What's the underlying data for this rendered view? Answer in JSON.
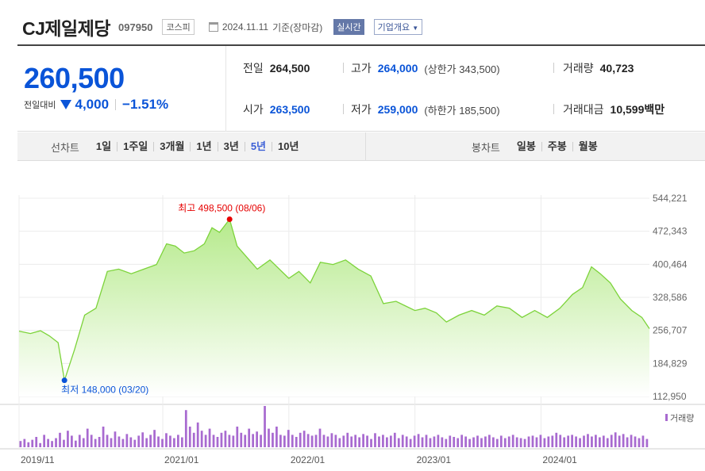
{
  "header": {
    "company": "CJ제일제당",
    "code": "097950",
    "market": "코스피",
    "date": "2024.11.11",
    "basis": "기준(장마감)",
    "realtime_btn": "실시간",
    "overview_btn": "기업개요"
  },
  "price": {
    "current": "260,500",
    "change_label": "전일대비",
    "change_amount": "4,000",
    "change_pct": "−1.51%",
    "direction": "down"
  },
  "stats": {
    "prev_close_label": "전일",
    "prev_close": "264,500",
    "high_label": "고가",
    "high": "264,000",
    "upper_limit": "(상한가 343,500)",
    "volume_label": "거래량",
    "volume": "40,723",
    "open_label": "시가",
    "open": "263,500",
    "low_label": "저가",
    "low": "259,000",
    "lower_limit": "(하한가 185,500)",
    "turnover_label": "거래대금",
    "turnover": "10,599",
    "turnover_unit": "백만"
  },
  "tabs": {
    "line_title": "선차트",
    "line_items": [
      "1일",
      "1주일",
      "3개월",
      "1년",
      "3년",
      "5년",
      "10년"
    ],
    "active_line": "5년",
    "candle_title": "봉차트",
    "candle_items": [
      "일봉",
      "주봉",
      "월봉"
    ]
  },
  "colors": {
    "accent_blue": "#0a54d8",
    "max_red": "#e60000",
    "line_green": "#7cd33a",
    "volume_purple": "#a86ad0"
  },
  "chart_data": {
    "type": "area",
    "period": "5y",
    "x_ticks": [
      "2019/11",
      "2021/01",
      "2022/01",
      "2023/01",
      "2024/01"
    ],
    "y_ticks": [
      "544,221",
      "472,343",
      "400,464",
      "328,586",
      "256,707",
      "184,829",
      "112,950"
    ],
    "ylim": [
      112950,
      544221
    ],
    "series": [
      {
        "values": [
          [
            2019.86,
            255000
          ],
          [
            2019.95,
            250000
          ],
          [
            2020.03,
            256000
          ],
          [
            2020.1,
            245000
          ],
          [
            2020.17,
            230000
          ],
          [
            2020.22,
            148000
          ],
          [
            2020.3,
            215000
          ],
          [
            2020.38,
            290000
          ],
          [
            2020.47,
            305000
          ],
          [
            2020.56,
            385000
          ],
          [
            2020.65,
            390000
          ],
          [
            2020.75,
            380000
          ],
          [
            2020.85,
            390000
          ],
          [
            2020.95,
            400000
          ],
          [
            2021.03,
            445000
          ],
          [
            2021.1,
            440000
          ],
          [
            2021.17,
            425000
          ],
          [
            2021.25,
            430000
          ],
          [
            2021.33,
            445000
          ],
          [
            2021.39,
            480000
          ],
          [
            2021.45,
            470000
          ],
          [
            2021.53,
            498500
          ],
          [
            2021.59,
            440000
          ],
          [
            2021.67,
            415000
          ],
          [
            2021.75,
            390000
          ],
          [
            2021.85,
            410000
          ],
          [
            2022.0,
            370000
          ],
          [
            2022.08,
            385000
          ],
          [
            2022.17,
            360000
          ],
          [
            2022.25,
            405000
          ],
          [
            2022.35,
            400000
          ],
          [
            2022.45,
            410000
          ],
          [
            2022.55,
            390000
          ],
          [
            2022.65,
            375000
          ],
          [
            2022.75,
            315000
          ],
          [
            2022.85,
            320000
          ],
          [
            2023.0,
            300000
          ],
          [
            2023.08,
            305000
          ],
          [
            2023.17,
            295000
          ],
          [
            2023.25,
            275000
          ],
          [
            2023.35,
            290000
          ],
          [
            2023.45,
            300000
          ],
          [
            2023.55,
            290000
          ],
          [
            2023.65,
            310000
          ],
          [
            2023.75,
            305000
          ],
          [
            2023.85,
            285000
          ],
          [
            2023.95,
            300000
          ],
          [
            2024.05,
            285000
          ],
          [
            2024.15,
            305000
          ],
          [
            2024.25,
            335000
          ],
          [
            2024.33,
            350000
          ],
          [
            2024.4,
            395000
          ],
          [
            2024.47,
            380000
          ],
          [
            2024.55,
            360000
          ],
          [
            2024.63,
            325000
          ],
          [
            2024.72,
            300000
          ],
          [
            2024.8,
            285000
          ],
          [
            2024.86,
            260500
          ]
        ]
      }
    ],
    "annotations": [
      {
        "label": "최고 498,500 (08/06)",
        "x": 2021.53,
        "y": 498500,
        "kind": "max"
      },
      {
        "label": "최저 148,000 (03/20)",
        "x": 2020.22,
        "y": 148000,
        "kind": "min"
      }
    ],
    "volume_label": "거래량",
    "volume_rel": [
      0.15,
      0.2,
      0.12,
      0.18,
      0.25,
      0.1,
      0.3,
      0.2,
      0.15,
      0.22,
      0.35,
      0.18,
      0.4,
      0.28,
      0.16,
      0.3,
      0.22,
      0.45,
      0.3,
      0.2,
      0.25,
      0.5,
      0.3,
      0.22,
      0.38,
      0.26,
      0.2,
      0.32,
      0.24,
      0.18,
      0.28,
      0.36,
      0.22,
      0.3,
      0.42,
      0.26,
      0.2,
      0.34,
      0.28,
      0.22,
      0.3,
      0.24,
      0.9,
      0.5,
      0.35,
      0.6,
      0.4,
      0.3,
      0.45,
      0.3,
      0.25,
      0.35,
      0.4,
      0.3,
      0.28,
      0.5,
      0.35,
      0.3,
      0.45,
      0.32,
      0.38,
      0.3,
      1.0,
      0.45,
      0.35,
      0.5,
      0.3,
      0.28,
      0.42,
      0.3,
      0.25,
      0.35,
      0.4,
      0.32,
      0.28,
      0.3,
      0.45,
      0.3,
      0.26,
      0.34,
      0.3,
      0.22,
      0.28,
      0.35,
      0.26,
      0.3,
      0.24,
      0.32,
      0.28,
      0.2,
      0.34,
      0.26,
      0.3,
      0.24,
      0.28,
      0.35,
      0.22,
      0.3,
      0.26,
      0.2,
      0.28,
      0.32,
      0.24,
      0.3,
      0.22,
      0.26,
      0.3,
      0.24,
      0.2,
      0.28,
      0.25,
      0.22,
      0.3,
      0.26,
      0.2,
      0.24,
      0.28,
      0.22,
      0.26,
      0.3,
      0.24,
      0.2,
      0.28,
      0.22,
      0.26,
      0.3,
      0.24,
      0.22,
      0.2,
      0.26,
      0.28,
      0.24,
      0.3,
      0.22,
      0.26,
      0.28,
      0.35,
      0.3,
      0.24,
      0.28,
      0.3,
      0.26,
      0.22,
      0.28,
      0.32,
      0.26,
      0.3,
      0.24,
      0.28,
      0.22,
      0.3,
      0.36,
      0.28,
      0.32,
      0.24,
      0.3,
      0.26,
      0.22,
      0.28,
      0.2
    ]
  }
}
